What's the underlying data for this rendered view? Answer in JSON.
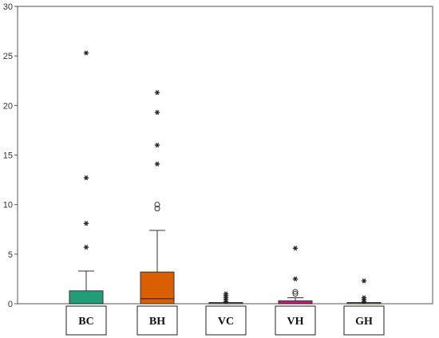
{
  "chart_data": {
    "type": "box",
    "title": "",
    "xlabel": "",
    "ylabel": "",
    "ylim": [
      0,
      30
    ],
    "yticks": [
      0,
      5,
      10,
      15,
      20,
      25,
      30
    ],
    "grid": false,
    "categories": [
      "BC",
      "BH",
      "VC",
      "VH",
      "GH"
    ],
    "colors": [
      "#1f9e77",
      "#d95f02",
      "#7570b3",
      "#c51b7d",
      "#66a61e"
    ],
    "boxes": [
      {
        "name": "BC",
        "whisker_low": 0,
        "q1": 0,
        "median": 0,
        "q3": 1.3,
        "whisker_high": 3.3,
        "outliers_circle": [],
        "outliers_star": [
          5.7,
          8.1,
          12.7,
          25.3
        ]
      },
      {
        "name": "BH",
        "whisker_low": 0,
        "q1": 0,
        "median": 0.5,
        "q3": 3.2,
        "whisker_high": 7.4,
        "outliers_circle": [
          9.6,
          10.0
        ],
        "outliers_star": [
          14.1,
          16.0,
          19.3,
          21.3
        ]
      },
      {
        "name": "VC",
        "whisker_low": 0,
        "q1": 0,
        "median": 0,
        "q3": 0,
        "whisker_high": 0,
        "outliers_circle": [],
        "outliers_star": [
          0.2,
          0.4,
          0.6,
          0.8,
          1.0
        ]
      },
      {
        "name": "VH",
        "whisker_low": 0,
        "q1": 0,
        "median": 0,
        "q3": 0.3,
        "whisker_high": 0.6,
        "outliers_circle": [
          1.0,
          1.2
        ],
        "outliers_star": [
          2.5,
          5.6
        ]
      },
      {
        "name": "GH",
        "whisker_low": 0,
        "q1": 0,
        "median": 0,
        "q3": 0,
        "whisker_high": 0,
        "outliers_circle": [],
        "outliers_star": [
          0.2,
          0.4,
          0.6,
          2.3
        ]
      }
    ]
  }
}
